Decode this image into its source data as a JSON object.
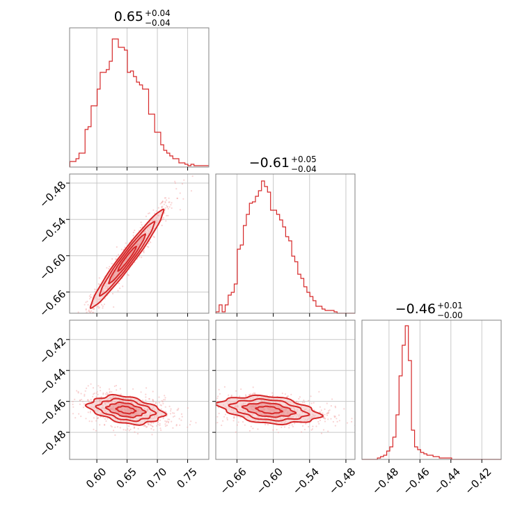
{
  "chart_data": {
    "type": "corner",
    "color": "#d62728",
    "grid": true,
    "parameters": [
      {
        "title": "0.65",
        "title_plus": "+0.04",
        "title_minus": "−0.04",
        "range": [
          0.555,
          0.785
        ],
        "ticks": [
          0.6,
          0.65,
          0.7,
          0.75
        ],
        "tick_labels": [
          "0.60",
          "0.65",
          "0.70",
          "0.75"
        ],
        "hist_x": [
          0.558,
          0.563,
          0.568,
          0.573,
          0.578,
          0.583,
          0.588,
          0.593,
          0.598,
          0.603,
          0.608,
          0.613,
          0.618,
          0.623,
          0.628,
          0.633,
          0.638,
          0.643,
          0.648,
          0.653,
          0.658,
          0.663,
          0.668,
          0.673,
          0.678,
          0.683,
          0.688,
          0.693,
          0.698,
          0.703,
          0.708,
          0.713,
          0.718,
          0.723,
          0.728,
          0.733,
          0.738,
          0.743,
          0.748,
          0.753,
          0.758,
          0.763,
          0.768,
          0.773,
          0.778,
          0.783
        ],
        "hist_y": [
          0.04,
          0.04,
          0.06,
          0.1,
          0.1,
          0.27,
          0.29,
          0.44,
          0.44,
          0.56,
          0.68,
          0.68,
          0.7,
          0.76,
          0.92,
          0.92,
          0.86,
          0.86,
          0.84,
          0.68,
          0.69,
          0.65,
          0.61,
          0.59,
          0.56,
          0.56,
          0.38,
          0.38,
          0.25,
          0.25,
          0.16,
          0.12,
          0.1,
          0.08,
          0.06,
          0.06,
          0.03,
          0.03,
          0.02,
          0.01,
          0.02,
          0.01,
          0.01,
          0.01,
          0.01,
          0.01
        ]
      },
      {
        "title": "−0.61",
        "title_plus": "+0.05",
        "title_minus": "−0.04",
        "range": [
          -0.695,
          -0.465
        ],
        "ticks": [
          -0.66,
          -0.6,
          -0.54,
          -0.48
        ],
        "tick_labels": [
          "−0.66",
          "−0.60",
          "−0.54",
          "−0.48"
        ],
        "hist_x": [
          -0.692,
          -0.687,
          -0.682,
          -0.677,
          -0.672,
          -0.667,
          -0.662,
          -0.657,
          -0.652,
          -0.647,
          -0.642,
          -0.637,
          -0.632,
          -0.627,
          -0.622,
          -0.617,
          -0.612,
          -0.607,
          -0.602,
          -0.597,
          -0.592,
          -0.587,
          -0.582,
          -0.577,
          -0.572,
          -0.567,
          -0.562,
          -0.557,
          -0.552,
          -0.547,
          -0.542,
          -0.537,
          -0.532,
          -0.527,
          -0.522,
          -0.517,
          -0.512,
          -0.507,
          -0.502,
          -0.497,
          -0.492,
          -0.487,
          -0.482,
          -0.477,
          -0.472,
          -0.467
        ],
        "hist_y": [
          0.01,
          0.06,
          0.01,
          0.06,
          0.13,
          0.15,
          0.21,
          0.46,
          0.49,
          0.63,
          0.71,
          0.79,
          0.8,
          0.84,
          0.88,
          0.95,
          0.91,
          0.87,
          0.74,
          0.74,
          0.71,
          0.67,
          0.62,
          0.55,
          0.52,
          0.41,
          0.37,
          0.28,
          0.25,
          0.19,
          0.15,
          0.12,
          0.09,
          0.05,
          0.05,
          0.03,
          0.02,
          0.02,
          0.02,
          0.01,
          0.0,
          0.0,
          0.0,
          0.0,
          0.0,
          0.0
        ]
      },
      {
        "title": "−0.46",
        "title_plus": "+0.01",
        "title_minus": "−0.00",
        "range": [
          -0.4975,
          -0.4075
        ],
        "ticks": [
          -0.48,
          -0.46,
          -0.44,
          -0.42
        ],
        "tick_labels": [
          "−0.48",
          "−0.46",
          "−0.44",
          "−0.42"
        ],
        "hist_x": [
          -0.4965,
          -0.4945,
          -0.4925,
          -0.4905,
          -0.4885,
          -0.4865,
          -0.4845,
          -0.4825,
          -0.4805,
          -0.4785,
          -0.4765,
          -0.4745,
          -0.4725,
          -0.4705,
          -0.4685,
          -0.4665,
          -0.4645,
          -0.4625,
          -0.4605,
          -0.4585,
          -0.4565,
          -0.4545,
          -0.4525,
          -0.4505,
          -0.4485,
          -0.4465,
          -0.4445,
          -0.4425,
          -0.4405,
          -0.4385,
          -0.4365,
          -0.4345,
          -0.4325,
          -0.4305,
          -0.4285,
          -0.4265,
          -0.4245,
          -0.4225,
          -0.4205,
          -0.4185,
          -0.4165,
          -0.4145,
          -0.4125,
          -0.4105,
          -0.4085
        ],
        "hist_y": [
          0.0,
          0.0,
          0.0,
          0.0,
          0.0,
          0.01,
          0.02,
          0.03,
          0.06,
          0.09,
          0.16,
          0.32,
          0.6,
          0.82,
          0.96,
          0.71,
          0.21,
          0.09,
          0.07,
          0.05,
          0.04,
          0.03,
          0.03,
          0.02,
          0.02,
          0.01,
          0.01,
          0.01,
          0.01,
          0.0,
          0.0,
          0.0,
          0.0,
          0.0,
          0.0,
          0.0,
          0.0,
          0.0,
          0.0,
          0.0,
          0.0,
          0.0,
          0.0,
          0.0,
          0.0
        ]
      }
    ],
    "pairs": [
      {
        "x_param": 0,
        "y_param": 1,
        "mean": [
          0.65,
          -0.605
        ],
        "sigma": [
          0.03,
          0.04
        ],
        "correlation": 0.97
      },
      {
        "x_param": 0,
        "y_param": 2,
        "mean": [
          0.648,
          -0.4655
        ],
        "sigma": [
          0.03,
          0.0045
        ],
        "correlation": -0.35
      },
      {
        "x_param": 1,
        "y_param": 2,
        "mean": [
          -0.607,
          -0.4655
        ],
        "sigma": [
          0.04,
          0.0045
        ],
        "correlation": -0.35
      }
    ]
  }
}
